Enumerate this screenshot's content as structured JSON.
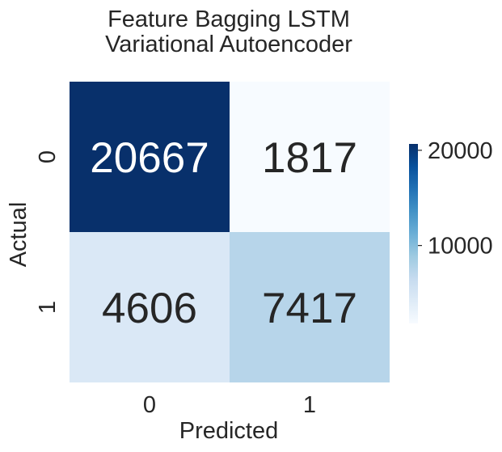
{
  "chart_data": {
    "type": "heatmap",
    "title": [
      "Feature Bagging LSTM",
      "Variational Autoencoder"
    ],
    "xlabel": "Predicted",
    "ylabel": "Actual",
    "x_categories": [
      "0",
      "1"
    ],
    "y_categories": [
      "0",
      "1"
    ],
    "values": [
      [
        20667,
        1817
      ],
      [
        4606,
        7417
      ]
    ],
    "colormap": "Blues",
    "color_range": [
      1817,
      20667
    ],
    "colorbar_ticks": [
      10000,
      20000
    ],
    "colorbar_tick_labels": [
      "10000",
      "20000"
    ]
  },
  "colors": {
    "dark_text": "#262626",
    "light_text": "#ffffff"
  }
}
